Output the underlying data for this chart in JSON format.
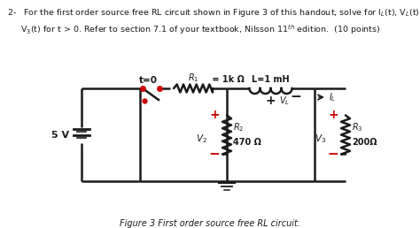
{
  "bg_color": "#ffffff",
  "line_color": "#1a1a1a",
  "red_color": "#cc0000",
  "header_line1": "2-   For the first order source free RL circuit shown in Figure 3 of this handout, solve for I",
  "header_line1b": "L",
  "header_line1c": "(t), V",
  "header_line1d": "L",
  "header_line1e": "(t) and",
  "header_line2": "     V",
  "header_line2b": "3",
  "header_line2c": "(t) for t > 0. Refer to section 7.1 of your textbook, Nilsson 11",
  "header_line2d": "th",
  "header_line2e": " edition.  (10 points)",
  "caption": "Figure 3 First order source free RL circuit.",
  "label_5v": "5 V",
  "label_t0": "t=0",
  "label_r1": "R",
  "label_r1b": "1",
  "label_r1c": " = 1k Ω",
  "label_L": "L=1 mH",
  "label_VL": "V",
  "label_VLb": "L",
  "label_IL": "I",
  "label_ILb": "L",
  "label_V2": "V",
  "label_V2b": "2",
  "label_R2": "R",
  "label_R2b": "2",
  "label_R2c": "470 Ω",
  "label_V3": "V",
  "label_V3b": "3",
  "label_R3": "R",
  "label_R3b": "3",
  "label_R3c": "200Ω",
  "plus": "+",
  "minus": "−"
}
